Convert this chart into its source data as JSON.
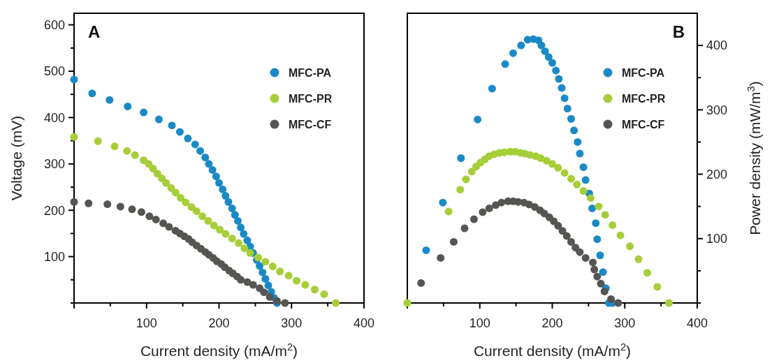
{
  "chart_data": [
    {
      "type": "scatter",
      "title": "A",
      "xlabel": "Current density (mA/m$^{2}$)",
      "ylabel": "Voltage (mV)",
      "xlim": [
        0,
        400
      ],
      "xticks": [
        {
          "value": 0,
          "label": null
        },
        {
          "value": 50,
          "label": null
        },
        100,
        {
          "value": 150,
          "label": null
        },
        200,
        {
          "value": 250,
          "label": null
        },
        300,
        {
          "value": 350,
          "label": null
        },
        400
      ],
      "ylim": [
        0,
        625
      ],
      "yticks": [
        {
          "value": 0,
          "label": null
        },
        {
          "value": 50,
          "label": null
        },
        100,
        {
          "value": 150,
          "label": null
        },
        200,
        {
          "value": 250,
          "label": null
        },
        300,
        {
          "value": 350,
          "label": null
        },
        400,
        {
          "value": 450,
          "label": null
        },
        500,
        {
          "value": 550,
          "label": null
        },
        600
      ],
      "legend": "top right",
      "marker": "circle",
      "grid": false,
      "series": [
        {
          "name": "MFC-PA",
          "color": "#1a8ac6",
          "x": [
            0,
            25,
            49,
            74,
            96,
            117,
            135,
            146,
            157,
            167,
            174,
            181,
            186,
            191,
            196,
            200,
            205,
            209,
            213,
            218,
            222,
            226,
            230,
            234,
            239,
            243,
            247,
            252,
            256,
            260,
            264,
            268,
            272,
            276,
            280
          ],
          "values": [
            482,
            452,
            438,
            424,
            411,
            396,
            383,
            369,
            355,
            342,
            328,
            314,
            300,
            287,
            273,
            259,
            245,
            231,
            218,
            204,
            190,
            177,
            163,
            149,
            135,
            122,
            108,
            93,
            80,
            66,
            52,
            38,
            24,
            11,
            0
          ]
        },
        {
          "name": "MFC-PR",
          "color": "#a6ce39",
          "x": [
            0,
            33,
            56,
            73,
            84,
            96,
            103,
            109,
            115,
            121,
            127,
            134,
            140,
            147,
            154,
            162,
            169,
            177,
            185,
            193,
            201,
            209,
            218,
            227,
            235,
            243,
            254,
            264,
            274,
            284,
            296,
            307,
            319,
            332,
            345,
            361
          ],
          "values": [
            358,
            349,
            338,
            328,
            319,
            308,
            300,
            290,
            279,
            269,
            259,
            248,
            238,
            227,
            217,
            207,
            198,
            187,
            177,
            167,
            158,
            149,
            139,
            129,
            118,
            108,
            98,
            89,
            79,
            68,
            59,
            48,
            39,
            29,
            19,
            0
          ]
        },
        {
          "name": "MFC-CF",
          "color": "#555552",
          "x": [
            0,
            20,
            46,
            64,
            80,
            93,
            104,
            113,
            123,
            131,
            140,
            146,
            152,
            158,
            163,
            169,
            175,
            181,
            186,
            192,
            197,
            203,
            208,
            214,
            219,
            225,
            230,
            239,
            247,
            256,
            262,
            270,
            280,
            291
          ],
          "values": [
            218,
            215,
            213,
            208,
            202,
            196,
            187,
            180,
            172,
            164,
            156,
            150,
            144,
            138,
            131,
            124,
            117,
            110,
            104,
            97,
            90,
            84,
            77,
            70,
            64,
            57,
            50,
            45,
            39,
            32,
            23,
            13,
            4,
            0
          ]
        }
      ]
    },
    {
      "type": "scatter",
      "title": "B",
      "xlabel": "Current density (mA/m$^{2}$)",
      "y2label": "Power density (mW/m$^{3}$)",
      "xlim": [
        0,
        400
      ],
      "xticks": [
        {
          "value": 0,
          "label": null
        },
        {
          "value": 50,
          "label": null
        },
        100,
        {
          "value": 150,
          "label": null
        },
        200,
        {
          "value": 250,
          "label": null
        },
        300,
        {
          "value": 350,
          "label": null
        },
        400
      ],
      "y2lim": [
        0,
        450
      ],
      "y2ticks": [
        {
          "value": 0,
          "label": null
        },
        {
          "value": 50,
          "label": null
        },
        100,
        {
          "value": 150,
          "label": null
        },
        200,
        {
          "value": 250,
          "label": null
        },
        300,
        {
          "value": 350,
          "label": null
        },
        400
      ],
      "legend": "top right",
      "marker": "circle",
      "grid": false,
      "series": [
        {
          "name": "MFC-PA",
          "color": "#1a8ac6",
          "axis": "y2",
          "x": [
            26,
            49,
            74,
            97,
            117,
            135,
            146,
            157,
            166,
            174,
            181,
            185,
            190,
            195,
            200,
            205,
            209,
            213,
            217,
            221,
            226,
            230,
            235,
            238,
            243,
            246,
            251,
            255,
            260,
            262,
            266,
            270,
            274,
            278,
            283
          ],
          "values": [
            82,
            156,
            225,
            285,
            333,
            371,
            388,
            400,
            409,
            410,
            408,
            400,
            391,
            382,
            373,
            361,
            348,
            334,
            318,
            302,
            286,
            268,
            250,
            232,
            211,
            191,
            170,
            147,
            124,
            99,
            74,
            48,
            23,
            0,
            0
          ]
        },
        {
          "name": "MFC-PR",
          "color": "#a6ce39",
          "axis": "y2",
          "x": [
            0,
            57,
            73,
            81,
            89,
            95,
            101,
            107,
            113,
            120,
            127,
            134,
            142,
            149,
            156,
            162,
            169,
            177,
            184,
            192,
            200,
            208,
            217,
            226,
            234,
            243,
            253,
            264,
            273,
            283,
            294,
            307,
            319,
            331,
            345,
            361
          ],
          "values": [
            0,
            142,
            176,
            192,
            204,
            212,
            218,
            223,
            228,
            231,
            233,
            234,
            235,
            235,
            233,
            232,
            230,
            228,
            225,
            221,
            216,
            210,
            202,
            193,
            184,
            174,
            163,
            150,
            137,
            121,
            105,
            88,
            68,
            47,
            25,
            0
          ]
        },
        {
          "name": "MFC-CF",
          "color": "#555552",
          "axis": "y2",
          "x": [
            19,
            46,
            64,
            79,
            92,
            104,
            113,
            122,
            130,
            139,
            146,
            153,
            161,
            168,
            176,
            183,
            189,
            196,
            202,
            208,
            214,
            220,
            226,
            232,
            238,
            246,
            256,
            258,
            262,
            267,
            272,
            281,
            291
          ],
          "values": [
            31,
            70,
            95,
            116,
            130,
            141,
            147,
            152,
            156,
            158,
            158,
            157,
            156,
            153,
            149,
            144,
            139,
            133,
            127,
            120,
            112,
            104,
            95,
            86,
            79,
            70,
            63,
            52,
            41,
            30,
            18,
            6,
            0
          ]
        }
      ]
    }
  ]
}
